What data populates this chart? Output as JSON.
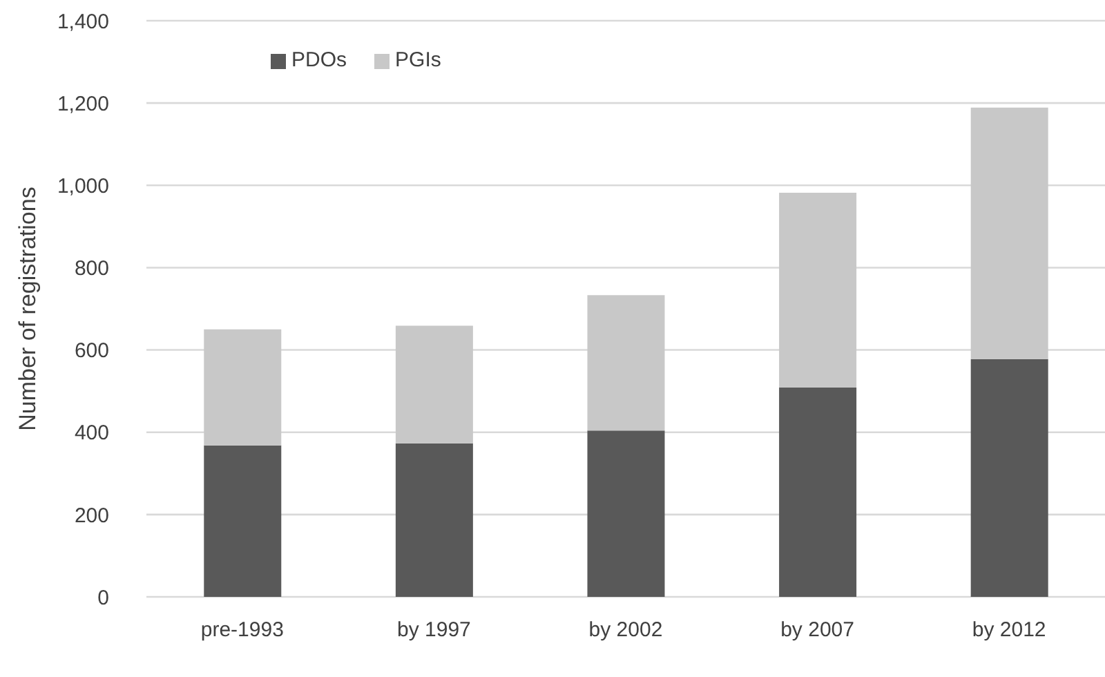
{
  "chart_data": {
    "type": "bar",
    "ylabel": "Number of registrations",
    "categories": [
      "pre-1993",
      "by 1997",
      "by 2002",
      "by 2007",
      "by 2012"
    ],
    "series": [
      {
        "name": "PDOs",
        "color": "#595959",
        "values": [
          368,
          373,
          404,
          509,
          578
        ]
      },
      {
        "name": "PGIs",
        "color": "#c8c8c8",
        "values": [
          282,
          286,
          329,
          473,
          611
        ]
      }
    ],
    "stacked": true,
    "ylim": [
      0,
      1400
    ],
    "yticks": [
      0,
      200,
      400,
      600,
      800,
      {
        "value": 1000,
        "label": "1,000"
      },
      {
        "value": 1200,
        "label": "1,200"
      },
      {
        "value": 1400,
        "label": "1,400"
      }
    ],
    "grid": "y",
    "legend": "top left"
  }
}
